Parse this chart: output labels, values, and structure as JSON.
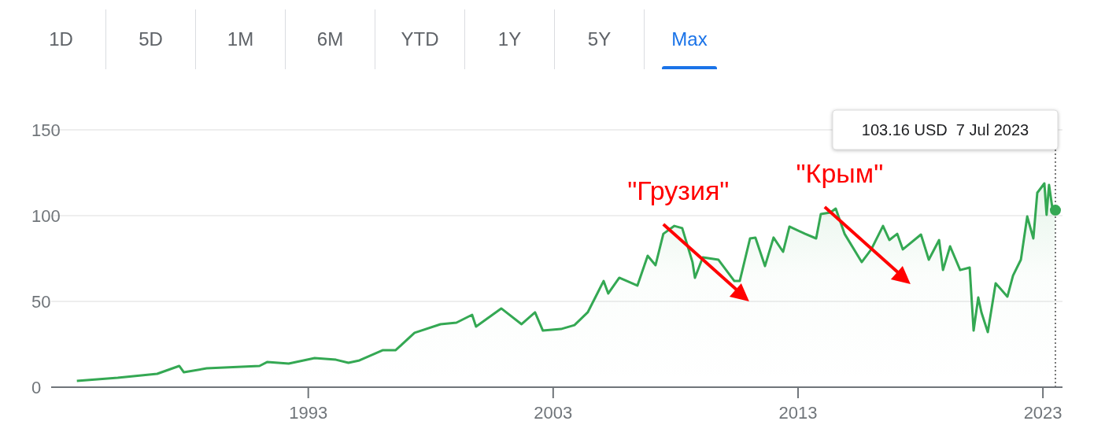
{
  "chart_data": {
    "type": "area",
    "x": [
      1983.55,
      1985.22,
      1986.83,
      1987.73,
      1987.92,
      1988.85,
      1991.01,
      1991.33,
      1992.2,
      1993.26,
      1994.13,
      1994.64,
      1995.09,
      1996.05,
      1996.57,
      1997.34,
      1998.4,
      1999.05,
      1999.69,
      1999.85,
      2000.88,
      2001.71,
      2002.26,
      2002.58,
      2003.32,
      2003.87,
      2004.41,
      2005.06,
      2005.25,
      2005.7,
      2006.44,
      2006.86,
      2007.18,
      2007.5,
      2007.95,
      2008.27,
      2008.69,
      2008.79,
      2009.11,
      2009.75,
      2010.4,
      2010.62,
      2011.04,
      2011.26,
      2011.65,
      2012.0,
      2012.39,
      2012.65,
      2013.29,
      2013.74,
      2013.93,
      2014.32,
      2014.54,
      2014.9,
      2015.6,
      2015.99,
      2016.47,
      2016.73,
      2017.05,
      2017.28,
      2018.02,
      2018.34,
      2018.76,
      2018.92,
      2019.21,
      2019.62,
      2020.01,
      2020.17,
      2020.36,
      2020.49,
      2020.75,
      2021.07,
      2021.55,
      2021.78,
      2022.1,
      2022.36,
      2022.61,
      2022.77,
      2023.06,
      2023.15,
      2023.25,
      2023.38,
      2023.51
    ],
    "series": [
      {
        "color": "#34a853",
        "values": [
          3.7,
          5.5,
          7.8,
          12.4,
          8.7,
          11,
          12.4,
          14.7,
          13.8,
          17,
          16,
          14.2,
          15.6,
          21.6,
          21.6,
          31.7,
          36.7,
          37.6,
          42.2,
          35.3,
          45.9,
          36.7,
          43.6,
          33,
          33.9,
          36.2,
          43.6,
          61.9,
          54.6,
          63.8,
          59.2,
          76.6,
          71.1,
          89.4,
          94,
          92.7,
          72.9,
          63.8,
          75.7,
          74.3,
          61.9,
          61.9,
          86.7,
          87.2,
          70.6,
          87.2,
          78.9,
          93.6,
          89.4,
          86.7,
          100.9,
          101.8,
          104.1,
          89.4,
          72.9,
          80.3,
          94,
          85.8,
          89.4,
          80.3,
          89,
          74.3,
          85.8,
          68.3,
          82.1,
          68.3,
          69.7,
          33,
          52.3,
          43.6,
          32.1,
          60.6,
          52.8,
          65.1,
          74.3,
          99.5,
          86.7,
          113.3,
          118.8,
          100.5,
          117.9,
          105,
          103.16
        ]
      }
    ],
    "xlim": [
      1982.5,
      2023.8
    ],
    "xticks": [
      1993,
      2003,
      2013,
      2023
    ],
    "ylim": [
      0,
      150
    ],
    "yticks": [
      0,
      50,
      100,
      150
    ],
    "grid": "y",
    "ref_lines": [
      {
        "axis": "x",
        "value": 2023.51,
        "line_style": "dotted",
        "color": "#777777",
        "label": "103.16 USD  7 Jul 2023"
      }
    ],
    "annotations": [
      "1D",
      "5D",
      "1M",
      "6M",
      "YTD",
      "1Y",
      "5Y",
      "Max",
      {
        "text": "\"Грузия\"",
        "x": 2007.95,
        "y": 94
      },
      {
        "text": "\"Крым\"",
        "x": 2014.54,
        "y": 104.1
      }
    ]
  }
}
